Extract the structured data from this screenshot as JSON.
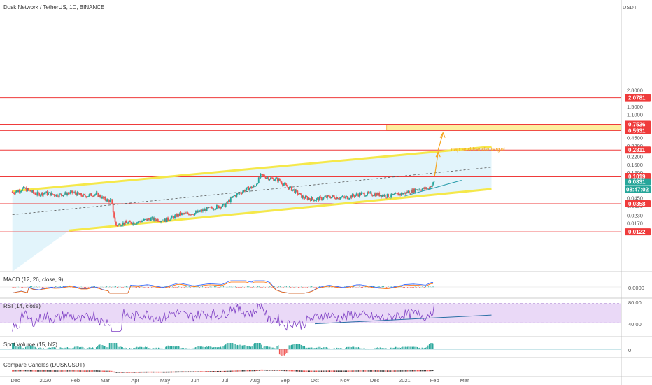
{
  "header": {
    "title": "Dusk Network / TetherUS, 1D, BINANCE"
  },
  "colors": {
    "up": "#26a69a",
    "down": "#ef5350",
    "channel": "#f5e84a",
    "fill": "#dff3fb",
    "level": "#ef3b3b",
    "target": "#f5a623",
    "rsi_band": "#ead9f7"
  },
  "chart_data": {
    "type": "candlestick",
    "scale": "log",
    "y_axis_unit": "USDT",
    "y_ticks": [
      "2.8000",
      "2.0000",
      "1.5000",
      "1.1000",
      "0.7000",
      "0.4500",
      "0.3300",
      "0.2200",
      "0.1600",
      "0.1200",
      "0.0650",
      "0.0450",
      "0.0330",
      "0.0230",
      "0.0170"
    ],
    "y_tick_values": [
      2.8,
      2.0,
      1.5,
      1.1,
      0.7,
      0.45,
      0.33,
      0.22,
      0.16,
      0.12,
      0.065,
      0.045,
      0.033,
      0.023,
      0.017
    ],
    "x_ticks": [
      "Dec",
      "2020",
      "Feb",
      "Mar",
      "Apr",
      "May",
      "Jun",
      "Jul",
      "Aug",
      "Sep",
      "Oct",
      "Nov",
      "Dec",
      "2021",
      "Feb",
      "Mar"
    ],
    "x_tick_months": [
      0,
      1,
      2,
      3,
      4,
      5,
      6,
      7,
      8,
      9,
      10,
      11,
      12,
      13,
      14,
      15
    ],
    "price_path": [
      [
        -0.1,
        0.055
      ],
      [
        0.3,
        0.064
      ],
      [
        0.7,
        0.052
      ],
      [
        1.0,
        0.054
      ],
      [
        1.4,
        0.05
      ],
      [
        1.9,
        0.055
      ],
      [
        2.3,
        0.048
      ],
      [
        2.7,
        0.052
      ],
      [
        3.0,
        0.042
      ],
      [
        3.2,
        0.04
      ],
      [
        3.35,
        0.0155
      ],
      [
        3.6,
        0.017
      ],
      [
        4.0,
        0.0175
      ],
      [
        4.5,
        0.02
      ],
      [
        5.0,
        0.019
      ],
      [
        5.5,
        0.024
      ],
      [
        6.0,
        0.025
      ],
      [
        6.5,
        0.03
      ],
      [
        7.0,
        0.034
      ],
      [
        7.3,
        0.048
      ],
      [
        7.7,
        0.062
      ],
      [
        8.0,
        0.07
      ],
      [
        8.2,
        0.107
      ],
      [
        8.5,
        0.095
      ],
      [
        8.8,
        0.09
      ],
      [
        9.0,
        0.072
      ],
      [
        9.3,
        0.06
      ],
      [
        9.6,
        0.046
      ],
      [
        10.0,
        0.042
      ],
      [
        10.5,
        0.047
      ],
      [
        11.0,
        0.045
      ],
      [
        11.5,
        0.052
      ],
      [
        12.0,
        0.052
      ],
      [
        12.5,
        0.048
      ],
      [
        13.0,
        0.054
      ],
      [
        13.4,
        0.062
      ],
      [
        13.8,
        0.065
      ],
      [
        14.0,
        0.0831
      ]
    ],
    "last_price": "0.0831",
    "countdown": "08:47:02",
    "levels": [
      {
        "value": 2.0781,
        "label": "2.0781",
        "weight": 1
      },
      {
        "value": 0.7536,
        "label": "0.7536",
        "weight": 1
      },
      {
        "value": 0.5931,
        "label": "0.5931",
        "weight": 1
      },
      {
        "value": 0.2811,
        "label": "0.2811",
        "weight": 1
      },
      {
        "value": 0.1019,
        "label": "0.1019",
        "weight": 2
      },
      {
        "value": 0.0358,
        "label": "0.0358",
        "weight": 1
      },
      {
        "value": 0.0122,
        "label": "0.0122",
        "weight": 1
      }
    ],
    "target_zone": {
      "from_month": 12.4,
      "low": 0.5931,
      "high": 0.7536
    },
    "channel": {
      "upper": [
        [
          -0.1,
          0.058
        ],
        [
          15.9,
          0.32
        ]
      ],
      "lower": [
        [
          1.8,
          0.0128
        ],
        [
          15.9,
          0.063
        ]
      ],
      "mid": [
        [
          -0.1,
          0.0235
        ],
        [
          15.9,
          0.145
        ]
      ]
    },
    "trendline": [
      [
        13.0,
        0.048
      ],
      [
        14.9,
        0.088
      ]
    ],
    "projection": {
      "x": 14.0,
      "y_from": 0.1019,
      "y_mid": 0.2811,
      "y_to": 0.59
    },
    "annotations": [
      {
        "text": "cap and handle target",
        "x": 14.55,
        "y": 0.268
      }
    ],
    "indicators": [
      {
        "name": "MACD (12, 26, close, 9)",
        "value": "0.0000"
      },
      {
        "name": "RSI (14, close)",
        "levels": [
          "80.00",
          "40.00"
        ],
        "trend": [
          [
            10.0,
            38.0
          ],
          [
            15.9,
            56.0
          ]
        ]
      },
      {
        "name": "Spot Volume (15, hl2)",
        "value": "0"
      },
      {
        "name": "Compare Candles (DUSKUSDT)"
      }
    ]
  }
}
